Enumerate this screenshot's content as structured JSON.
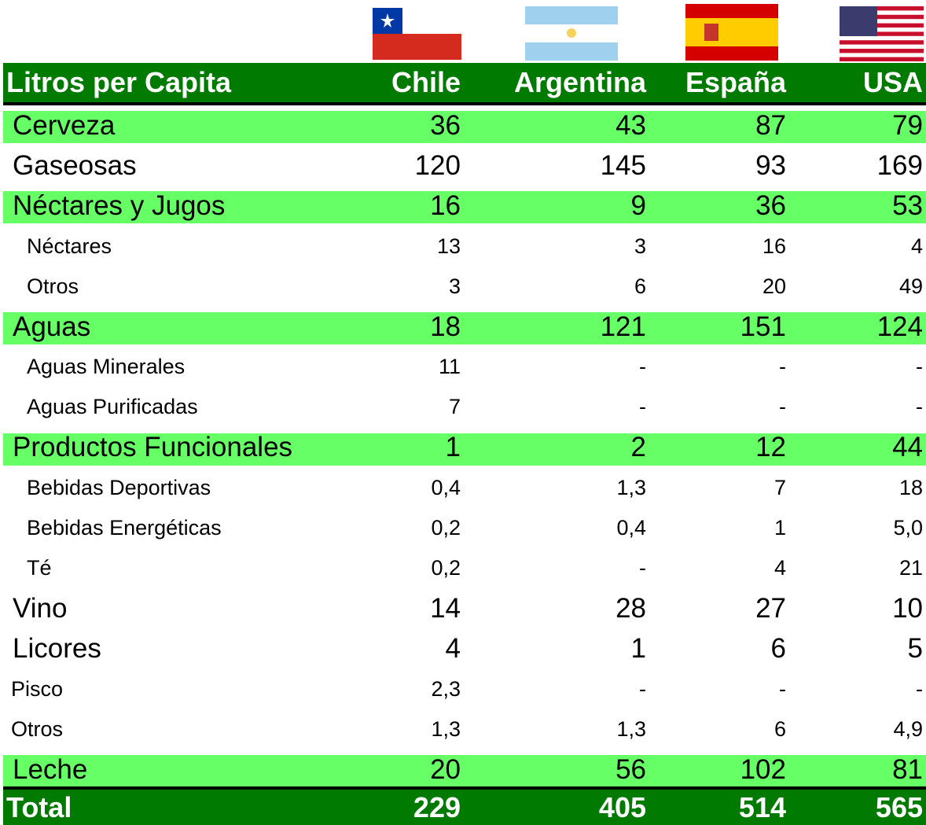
{
  "table": {
    "header": [
      "Litros per Capita",
      "Chile",
      "Argentina",
      "España",
      "USA"
    ],
    "rows": [
      [
        "Cerveza",
        "36",
        "43",
        "87",
        "79"
      ],
      [
        "Gaseosas",
        "120",
        "145",
        "93",
        "169"
      ],
      [
        "Néctares y Jugos",
        "16",
        "9",
        "36",
        "53"
      ],
      [
        "Néctares",
        "13",
        "3",
        "16",
        "4"
      ],
      [
        "Otros",
        "3",
        "6",
        "20",
        "49"
      ],
      [
        "Aguas",
        "18",
        "121",
        "151",
        "124"
      ],
      [
        "Aguas Minerales",
        "11",
        "-",
        "-",
        "-"
      ],
      [
        "Aguas Purificadas",
        "7",
        "-",
        "-",
        "-"
      ],
      [
        "Productos Funcionales",
        "1",
        "2",
        "12",
        "44"
      ],
      [
        "Bebidas Deportivas",
        "0,4",
        "1,3",
        "7",
        "18"
      ],
      [
        "Bebidas Energéticas",
        "0,2",
        "0,4",
        "1",
        "5,0"
      ],
      [
        "Té",
        "0,2",
        "-",
        "4",
        "21"
      ],
      [
        "Vino",
        "14",
        "28",
        "27",
        "10"
      ],
      [
        "Licores",
        "4",
        "1",
        "6",
        "5"
      ],
      [
        "Pisco",
        "2,3",
        "-",
        "-",
        "-"
      ],
      [
        "Otros",
        "1,3",
        "1,3",
        "6",
        "4,9"
      ],
      [
        "Leche",
        "20",
        "56",
        "102",
        "81"
      ]
    ],
    "total": [
      "Total",
      "229",
      "405",
      "514",
      "565"
    ]
  }
}
